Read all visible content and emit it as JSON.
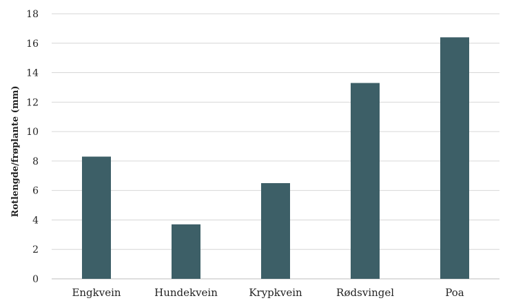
{
  "chart_data": {
    "type": "bar",
    "title": "",
    "xlabel": "",
    "ylabel": "Rotlengde/frøplante (mm)",
    "categories": [
      "Engkvein",
      "Hundekvein",
      "Krypkvein",
      "Rødsvingel",
      "Poa"
    ],
    "values": [
      8.3,
      3.7,
      6.5,
      13.3,
      16.4
    ],
    "ylim": [
      0,
      18
    ],
    "yticks": [
      "0",
      "2",
      "4",
      "6",
      "8",
      "10",
      "12",
      "14",
      "16",
      "18"
    ],
    "grid": true,
    "legend": "none",
    "bar_color": "#3d5f67"
  }
}
